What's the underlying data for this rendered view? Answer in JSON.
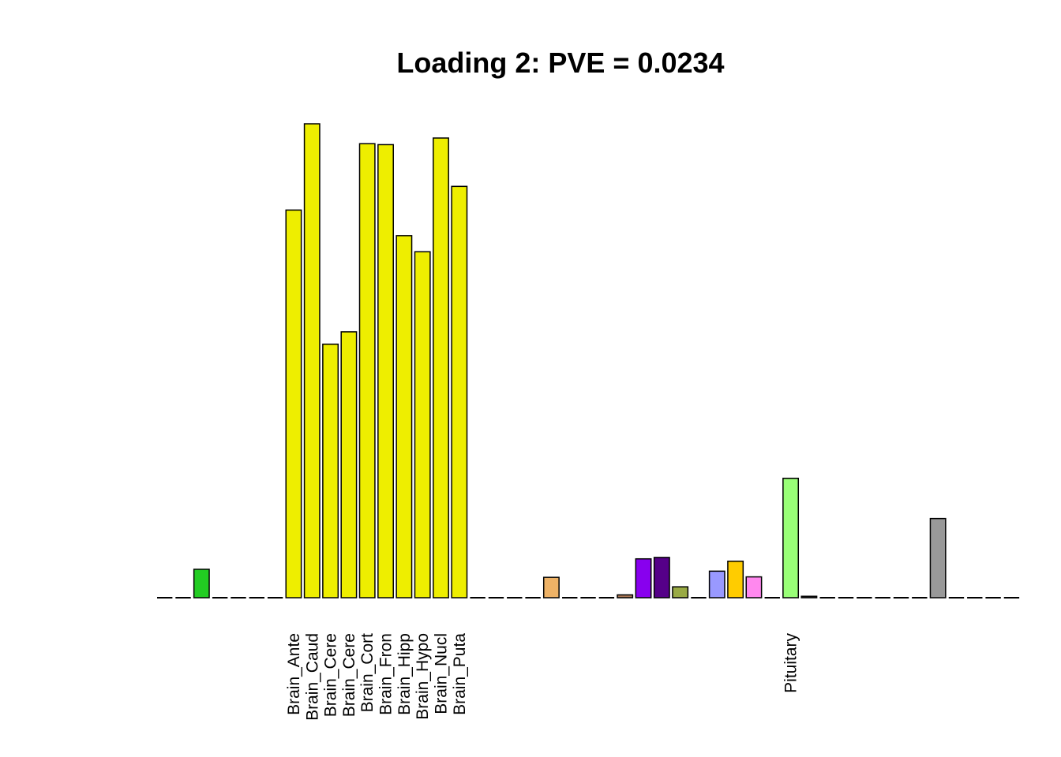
{
  "chart_data": {
    "type": "bar",
    "title": "Loading 2: PVE = 0.0234",
    "xlabel": "",
    "ylabel": "",
    "ylim": [
      0,
      1
    ],
    "grid": false,
    "legend": "none",
    "categories": [
      "",
      "",
      "",
      "",
      "",
      "",
      "",
      "Brain_Ante",
      "Brain_Caud",
      "Brain_Cere",
      "Brain_Cere",
      "Brain_Cort",
      "Brain_Fron",
      "Brain_Hipp",
      "Brain_Hypo",
      "Brain_Nucl",
      "Brain_Puta",
      "",
      "",
      "",
      "",
      "",
      "",
      "",
      "",
      "",
      "",
      "",
      "",
      "",
      "",
      "",
      "",
      "",
      "Pituitary",
      "",
      "",
      "",
      "",
      "",
      "",
      "",
      "",
      "",
      "",
      "",
      ""
    ],
    "values": [
      0,
      0,
      0.06,
      0,
      0,
      0,
      0,
      0.818,
      1.0,
      0.535,
      0.561,
      0.958,
      0.956,
      0.764,
      0.73,
      0.97,
      0.868,
      0,
      0,
      0,
      0,
      0.043,
      0,
      0,
      0,
      0.006,
      0.082,
      0.085,
      0.023,
      0,
      0.056,
      0.077,
      0.044,
      0,
      0.252,
      0.003,
      0,
      0,
      0,
      0,
      0,
      0,
      0.167,
      0,
      0,
      0,
      0
    ],
    "colors": [
      "#000000",
      "#000000",
      "#22CC22",
      "#000000",
      "#000000",
      "#000000",
      "#000000",
      "#EEEE00",
      "#EEEE00",
      "#EEEE00",
      "#EEEE00",
      "#EEEE00",
      "#EEEE00",
      "#EEEE00",
      "#EEEE00",
      "#EEEE00",
      "#EEEE00",
      "#000000",
      "#000000",
      "#000000",
      "#000000",
      "#EEB266",
      "#000000",
      "#000000",
      "#000000",
      "#AA7755",
      "#8800EE",
      "#550088",
      "#99AA44",
      "#000000",
      "#9999FF",
      "#FFCC00",
      "#FF88EE",
      "#000000",
      "#99FF77",
      "#333333",
      "#000000",
      "#000000",
      "#000000",
      "#000000",
      "#000000",
      "#000000",
      "#999999",
      "#000000",
      "#000000",
      "#000000",
      "#000000"
    ]
  }
}
